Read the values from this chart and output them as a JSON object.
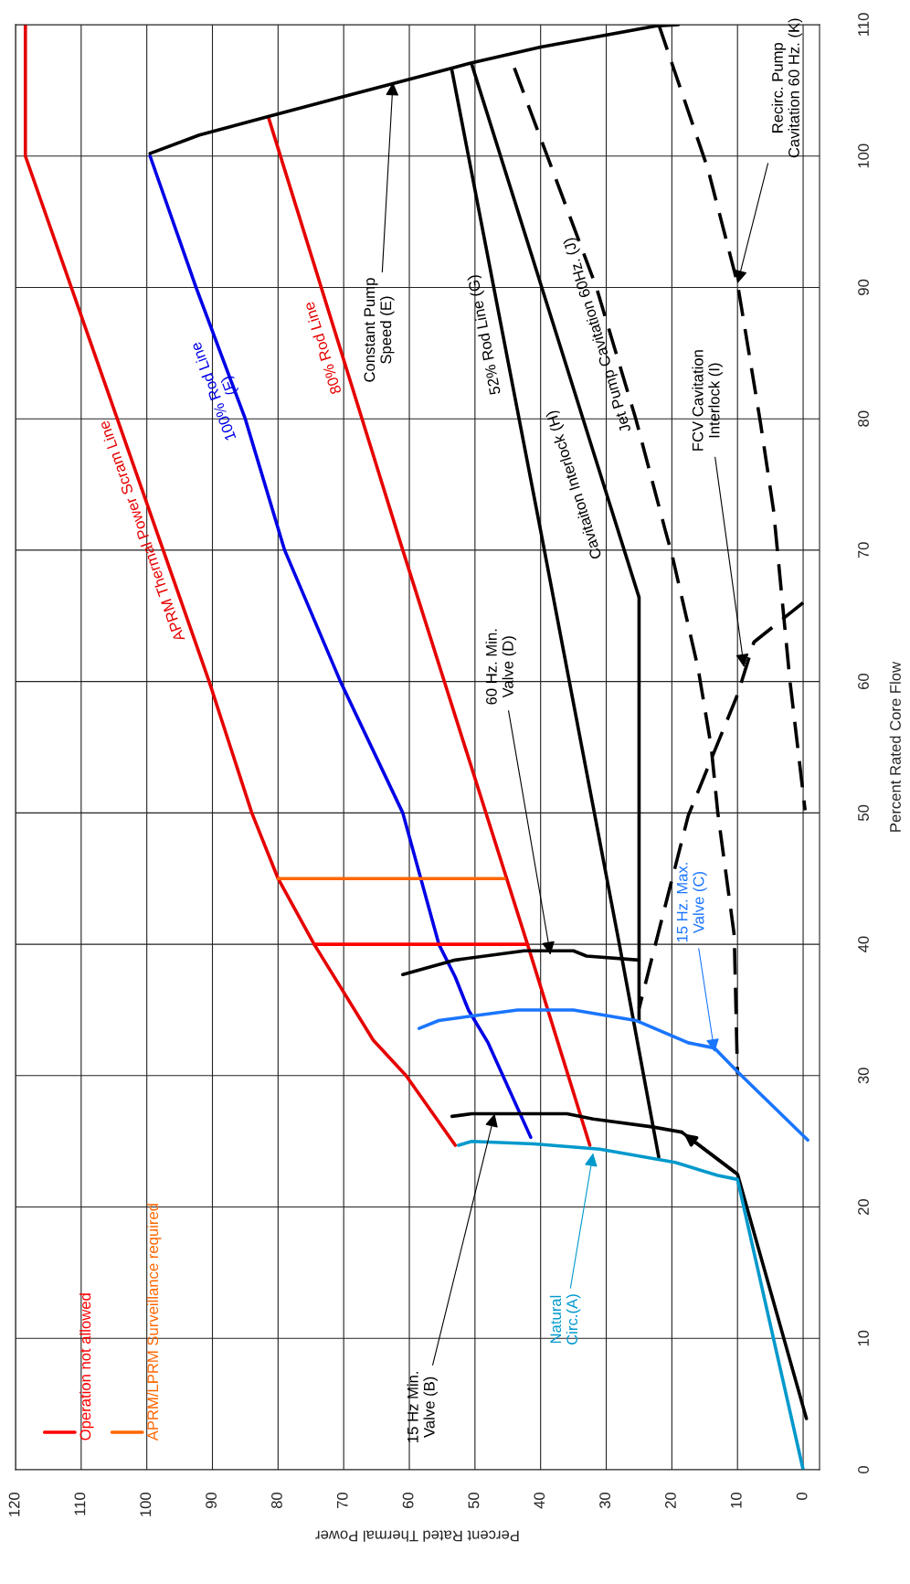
{
  "chart_data": {
    "type": "line",
    "xlabel": "Percent Rated Thermal Power",
    "ylabel": "Percent Rated Core Flow",
    "xlim": [
      120,
      -2.5
    ],
    "ylim": [
      0,
      110
    ],
    "xticks": [
      0,
      10,
      20,
      30,
      40,
      50,
      60,
      70,
      80,
      90,
      100,
      110,
      120
    ],
    "yticks": [
      0,
      10,
      20,
      30,
      40,
      50,
      60,
      70,
      80,
      90,
      100,
      110
    ],
    "grid": true,
    "legend": "bottom left",
    "series": [
      {
        "name": "APRM Thermal Power Scram Line",
        "color": "#e60000",
        "x": [
          118.5,
          118.5,
          90.5,
          84,
          80,
          74.5,
          65.5,
          60.5,
          53
        ],
        "values": [
          110,
          100,
          60,
          50,
          45,
          40,
          32.7,
          30,
          24.7
        ]
      },
      {
        "name": "100% Rod Line\n(F)",
        "color": "#0000e6",
        "x": [
          99.5,
          92.5,
          85,
          79,
          70.5,
          61,
          55.5,
          53,
          51,
          48,
          41.5
        ],
        "values": [
          100,
          90,
          80,
          70,
          60,
          50,
          40,
          37.5,
          35,
          32.5,
          25.3
        ]
      },
      {
        "name": "80% Rod Line",
        "color": "#e60000",
        "x": [
          81.5,
          61,
          42,
          32.5
        ],
        "values": [
          103,
          70,
          40,
          24.7
        ]
      },
      {
        "name": "52% Rod Line (G)",
        "color": "#000000",
        "x": [
          53.5,
          40,
          28,
          22
        ],
        "values": [
          106.5,
          71.5,
          40,
          23.8
        ]
      },
      {
        "name": "Cavitaiton Interlock (H)",
        "color": "#000000",
        "x": [
          50.5,
          25,
          25
        ],
        "values": [
          107,
          66.4,
          34.2
        ]
      },
      {
        "name": "Jet Pump Cavitation 60Hz. (J)",
        "color": "#000000",
        "line_style": "dashed",
        "x": [
          44,
          31.5,
          25.5,
          21,
          20,
          16,
          14,
          13,
          10.5,
          10
        ],
        "values": [
          106.7,
          90,
          80,
          71.5,
          69.7,
          61,
          55,
          50,
          40.7,
          30.1
        ]
      },
      {
        "color": "#000000",
        "x": [
          99.5,
          92,
          81.5,
          71,
          53.5,
          50.5,
          40,
          22.5,
          19
        ],
        "values": [
          100.2,
          101.6,
          103,
          104.4,
          106.7,
          107.1,
          108.3,
          109.9,
          110
        ]
      },
      {
        "color": "#000000",
        "line_style": "dashed",
        "x": [
          0,
          7.5,
          10,
          17.5,
          25
        ],
        "values": [
          66,
          63,
          59,
          49.8,
          35.1
        ]
      },
      {
        "color": "#000000",
        "line_style": "dashed",
        "x": [
          22,
          14.5,
          10,
          6.5,
          4.5,
          2,
          -0.3
        ],
        "values": [
          110,
          99,
          90.3,
          79.7,
          73,
          60,
          50.2
        ]
      },
      {
        "color": "#000000",
        "x": [
          61,
          53,
          42.5,
          35,
          33,
          25
        ],
        "values": [
          37.7,
          38.8,
          39.5,
          39.5,
          39.1,
          38.8
        ]
      },
      {
        "color": "#1a75ff",
        "x": [
          58.5,
          55.5,
          43.5,
          35,
          25.5,
          17.5,
          13.5,
          10,
          -0.7
        ],
        "values": [
          33.6,
          34.2,
          35,
          35,
          34.2,
          32.5,
          32.1,
          30.3,
          25.1
        ]
      },
      {
        "color": "#000000",
        "x": [
          53.5,
          50.5,
          36,
          32,
          23,
          18.5
        ],
        "values": [
          26.9,
          27.1,
          27.1,
          26.7,
          26.1,
          25.7
        ]
      },
      {
        "color": "#000000",
        "x": [
          -0.5,
          10,
          18.5
        ],
        "values": [
          3.9,
          22.5,
          25.7
        ]
      },
      {
        "color": "#0099cc",
        "x": [
          0,
          10,
          13,
          19.5,
          31,
          41,
          50.5,
          52.5
        ],
        "values": [
          0,
          22.1,
          22.4,
          23.4,
          24.4,
          24.8,
          25,
          24.7
        ]
      },
      {
        "name": "Operation not allowed",
        "color": "#ff0000",
        "x": [
          74.5,
          42
        ],
        "values": [
          40,
          40
        ]
      },
      {
        "name": "APRM/LPRM Surveillance required",
        "color": "#ff6600",
        "x": [
          80,
          45.5
        ],
        "values": [
          45,
          45
        ]
      }
    ],
    "annotations": [
      {
        "text": "Constant Pump\nSpeed (E)",
        "x": 62.5,
        "y": 105.6
      },
      {
        "text": "15 Hz Min.\nValve (B)",
        "x": 47,
        "y": 27.1
      },
      {
        "text": "Natural\nCirc.(A)",
        "x": 32,
        "y": 24.1
      },
      {
        "text": "15 Hz. Max.\nValve (C)",
        "x": 13.5,
        "y": 31.8
      },
      {
        "text": "60 Hz. Min.\nValve (D)",
        "x": 38.5,
        "y": 39.2
      },
      {
        "text": "FCV Cavitation\nInterlock (I)",
        "x": 9,
        "y": 61.1
      },
      {
        "text": "Recirc. Pump\nCavitation 60 Hz. (K)",
        "x": 10,
        "y": 90.3
      }
    ]
  }
}
